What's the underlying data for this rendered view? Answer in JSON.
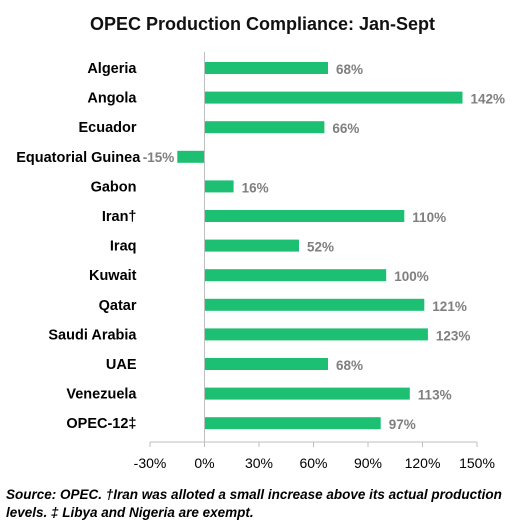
{
  "chart_data": {
    "type": "bar",
    "orientation": "horizontal",
    "title": "OPEC Production Compliance: Jan-Sept",
    "categories": [
      "Algeria",
      "Angola",
      "Ecuador",
      "Equatorial Guinea",
      "Gabon",
      "Iran†",
      "Iraq",
      "Kuwait",
      "Qatar",
      "Saudi Arabia",
      "UAE",
      "Venezuela",
      "OPEC-12‡"
    ],
    "values": [
      68,
      142,
      66,
      -15,
      16,
      110,
      52,
      100,
      121,
      123,
      68,
      113,
      97
    ],
    "value_labels": [
      "68%",
      "142%",
      "66%",
      "-15%",
      "16%",
      "110%",
      "52%",
      "100%",
      "121%",
      "123%",
      "68%",
      "113%",
      "97%"
    ],
    "xlim": [
      -30,
      150
    ],
    "xticks": [
      -30,
      0,
      30,
      60,
      90,
      120,
      150
    ],
    "xtick_labels": [
      "-30%",
      "0%",
      "30%",
      "60%",
      "90%",
      "120%",
      "150%"
    ],
    "grid": false,
    "bar_color": "#1dbf73",
    "axis_color": "#bfbfbf",
    "value_label_color": "#7f7f7f"
  },
  "source_note": "Source: OPEC. †Iran was alloted a small increase above its actual production levels. ‡ Libya and Nigeria are exempt."
}
